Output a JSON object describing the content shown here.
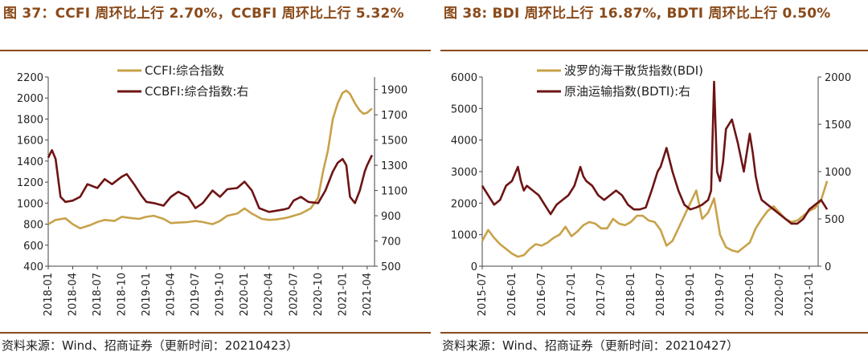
{
  "left": {
    "title": "图 37：CCFI 周环比上行 2.70%，CCBFI 周环比上行 5.32%",
    "source": "资料来源：Wind、招商证券（更新时间：20210423）",
    "chart_data": {
      "type": "line",
      "x_labels": [
        "2018-01",
        "2018-04",
        "2018-07",
        "2018-10",
        "2019-01",
        "2019-04",
        "2019-07",
        "2019-10",
        "2020-01",
        "2020-04",
        "2020-07",
        "2020-10",
        "2021-01",
        "2021-04"
      ],
      "y_left": {
        "min": 400,
        "max": 2200,
        "ticks": [
          400,
          600,
          800,
          1000,
          1200,
          1400,
          1600,
          1800,
          2000,
          2200
        ]
      },
      "y_right": {
        "min": 500,
        "max": 2000,
        "ticks": [
          500,
          700,
          900,
          1100,
          1300,
          1500,
          1700,
          1900
        ]
      },
      "grid": false,
      "legend_position": "top",
      "series": [
        {
          "name": "CCFI:综合指数",
          "axis": "left",
          "color": "#c8a24a",
          "x": [
            0,
            0.3,
            0.7,
            1,
            1.3,
            1.7,
            2,
            2.3,
            2.7,
            3,
            3.3,
            3.7,
            4,
            4.3,
            4.7,
            5,
            5.3,
            5.7,
            6,
            6.3,
            6.7,
            7,
            7.3,
            7.7,
            8,
            8.3,
            8.7,
            9,
            9.3,
            9.7,
            10,
            10.3,
            10.7,
            11,
            11.2,
            11.4,
            11.6,
            11.8,
            12,
            12.15,
            12.3,
            12.5,
            12.7,
            12.85,
            13,
            13.2
          ],
          "values": [
            800,
            840,
            855,
            800,
            760,
            790,
            820,
            840,
            830,
            870,
            860,
            850,
            870,
            880,
            850,
            810,
            815,
            820,
            830,
            820,
            800,
            830,
            880,
            900,
            950,
            900,
            850,
            840,
            845,
            860,
            880,
            900,
            950,
            1050,
            1300,
            1500,
            1800,
            1950,
            2050,
            2070,
            2040,
            1950,
            1880,
            1850,
            1860,
            1900
          ]
        },
        {
          "name": "CCBFI:综合指数:右",
          "axis": "right",
          "color": "#6e1414",
          "x": [
            0,
            0.15,
            0.3,
            0.5,
            0.7,
            1,
            1.3,
            1.6,
            2,
            2.3,
            2.6,
            3,
            3.2,
            3.5,
            3.8,
            4,
            4.3,
            4.7,
            5,
            5.3,
            5.7,
            6,
            6.3,
            6.7,
            7,
            7.3,
            7.7,
            8,
            8.3,
            8.6,
            9,
            9.3,
            9.6,
            9.8,
            10,
            10.3,
            10.6,
            11,
            11.3,
            11.6,
            11.8,
            12,
            12.15,
            12.3,
            12.5,
            12.7,
            12.9,
            13,
            13.2
          ],
          "values": [
            1360,
            1420,
            1350,
            1050,
            1010,
            1020,
            1050,
            1150,
            1120,
            1190,
            1150,
            1210,
            1230,
            1150,
            1060,
            1010,
            1000,
            980,
            1050,
            1090,
            1050,
            960,
            1000,
            1100,
            1050,
            1110,
            1120,
            1170,
            1100,
            960,
            930,
            940,
            950,
            960,
            1020,
            1050,
            1010,
            1000,
            1100,
            1250,
            1320,
            1350,
            1300,
            1050,
            1000,
            1100,
            1250,
            1300,
            1380
          ]
        }
      ]
    }
  },
  "right": {
    "title": "图 38: BDI 周环比上行 16.87%, BDTI 周环比上行 0.50%",
    "source": "资料来源：Wind、招商证券（更新时间：20210427）",
    "chart_data": {
      "type": "line",
      "x_labels": [
        "2015-07",
        "2016-01",
        "2016-07",
        "2017-01",
        "2017-07",
        "2018-01",
        "2018-07",
        "2019-01",
        "2019-07",
        "2020-01",
        "2020-07",
        "2021-01"
      ],
      "y_left": {
        "min": 0,
        "max": 6000,
        "ticks": [
          0,
          1000,
          2000,
          3000,
          4000,
          5000,
          6000
        ]
      },
      "y_right": {
        "min": 0,
        "max": 2000,
        "ticks": [
          0,
          500,
          1000,
          1500,
          2000
        ]
      },
      "grid": false,
      "legend_position": "top",
      "series": [
        {
          "name": "波罗的海干散货指数(BDI)",
          "axis": "left",
          "color": "#c8a24a",
          "x": [
            0,
            0.2,
            0.4,
            0.6,
            0.8,
            1,
            1.2,
            1.4,
            1.6,
            1.8,
            2,
            2.2,
            2.4,
            2.6,
            2.8,
            3,
            3.2,
            3.4,
            3.6,
            3.8,
            4,
            4.2,
            4.4,
            4.6,
            4.8,
            5,
            5.2,
            5.4,
            5.6,
            5.8,
            6,
            6.2,
            6.4,
            6.6,
            6.8,
            7,
            7.2,
            7.4,
            7.6,
            7.8,
            8,
            8.2,
            8.4,
            8.6,
            8.8,
            9,
            9.2,
            9.4,
            9.6,
            9.8,
            10,
            10.2,
            10.4,
            10.6,
            10.8,
            11,
            11.2,
            11.4,
            11.6
          ],
          "values": [
            800,
            1150,
            900,
            700,
            550,
            400,
            300,
            350,
            550,
            700,
            650,
            750,
            900,
            1000,
            1250,
            950,
            1100,
            1300,
            1400,
            1350,
            1200,
            1200,
            1500,
            1350,
            1300,
            1400,
            1600,
            1600,
            1450,
            1400,
            1150,
            650,
            800,
            1200,
            1600,
            2000,
            2400,
            1500,
            1700,
            2150,
            1000,
            600,
            500,
            450,
            600,
            750,
            1200,
            1500,
            1750,
            1900,
            1700,
            1500,
            1400,
            1450,
            1600,
            1750,
            1850,
            2100,
            2700
          ]
        },
        {
          "name": "原油运输指数(BDTI):右",
          "axis": "right",
          "color": "#6e1414",
          "x": [
            0,
            0.2,
            0.4,
            0.6,
            0.8,
            1,
            1.2,
            1.3,
            1.4,
            1.5,
            1.7,
            1.9,
            2.1,
            2.3,
            2.5,
            2.7,
            2.9,
            3.1,
            3.3,
            3.4,
            3.5,
            3.7,
            3.9,
            4.1,
            4.3,
            4.5,
            4.7,
            4.9,
            5.1,
            5.3,
            5.5,
            5.7,
            5.8,
            5.9,
            6,
            6.2,
            6.4,
            6.6,
            6.8,
            7,
            7.2,
            7.4,
            7.6,
            7.7,
            7.8,
            7.9,
            8,
            8.1,
            8.2,
            8.4,
            8.6,
            8.8,
            9,
            9.1,
            9.2,
            9.3,
            9.4,
            9.6,
            9.8,
            10,
            10.2,
            10.4,
            10.6,
            10.8,
            11,
            11.2,
            11.4,
            11.6
          ],
          "values": [
            850,
            750,
            650,
            700,
            850,
            900,
            1050,
            900,
            800,
            850,
            800,
            750,
            650,
            550,
            650,
            700,
            750,
            850,
            1050,
            950,
            900,
            850,
            750,
            700,
            750,
            800,
            750,
            650,
            600,
            600,
            620,
            800,
            900,
            1000,
            1050,
            1250,
            1000,
            800,
            650,
            600,
            620,
            650,
            700,
            800,
            1950,
            1000,
            900,
            1100,
            1450,
            1550,
            1300,
            1000,
            1400,
            1200,
            950,
            800,
            700,
            650,
            600,
            550,
            500,
            450,
            450,
            500,
            600,
            650,
            700,
            600
          ]
        }
      ]
    }
  }
}
